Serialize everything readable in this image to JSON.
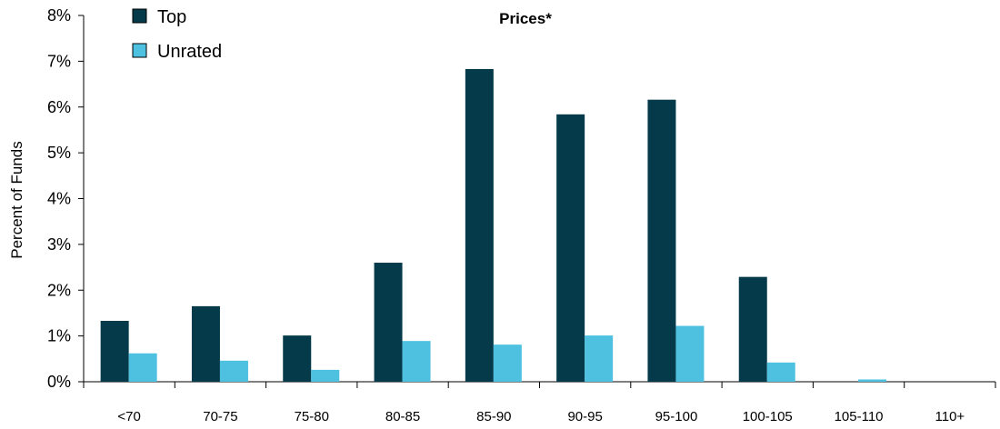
{
  "chart_data": {
    "type": "bar",
    "title": "Prices*",
    "ylabel": "Percent of Funds",
    "xlabel": "",
    "ylim": [
      0,
      8
    ],
    "yticks": [
      "0%",
      "1%",
      "2%",
      "3%",
      "4%",
      "5%",
      "6%",
      "7%",
      "8%"
    ],
    "categories": [
      "<70",
      "70-75",
      "75-80",
      "80-85",
      "85-90",
      "90-95",
      "95-100",
      "100-105",
      "105-110",
      "110+"
    ],
    "series": [
      {
        "name": "Top",
        "color": "#043a4a",
        "values": [
          1.33,
          1.65,
          1.01,
          2.6,
          6.83,
          5.84,
          6.16,
          2.29,
          0,
          0
        ]
      },
      {
        "name": "Unrated",
        "color": "#4ec0e0",
        "values": [
          0.62,
          0.46,
          0.26,
          0.89,
          0.81,
          1.01,
          1.22,
          0.42,
          0.05,
          0
        ]
      }
    ],
    "legend_position": "top-left",
    "grid": false
  }
}
